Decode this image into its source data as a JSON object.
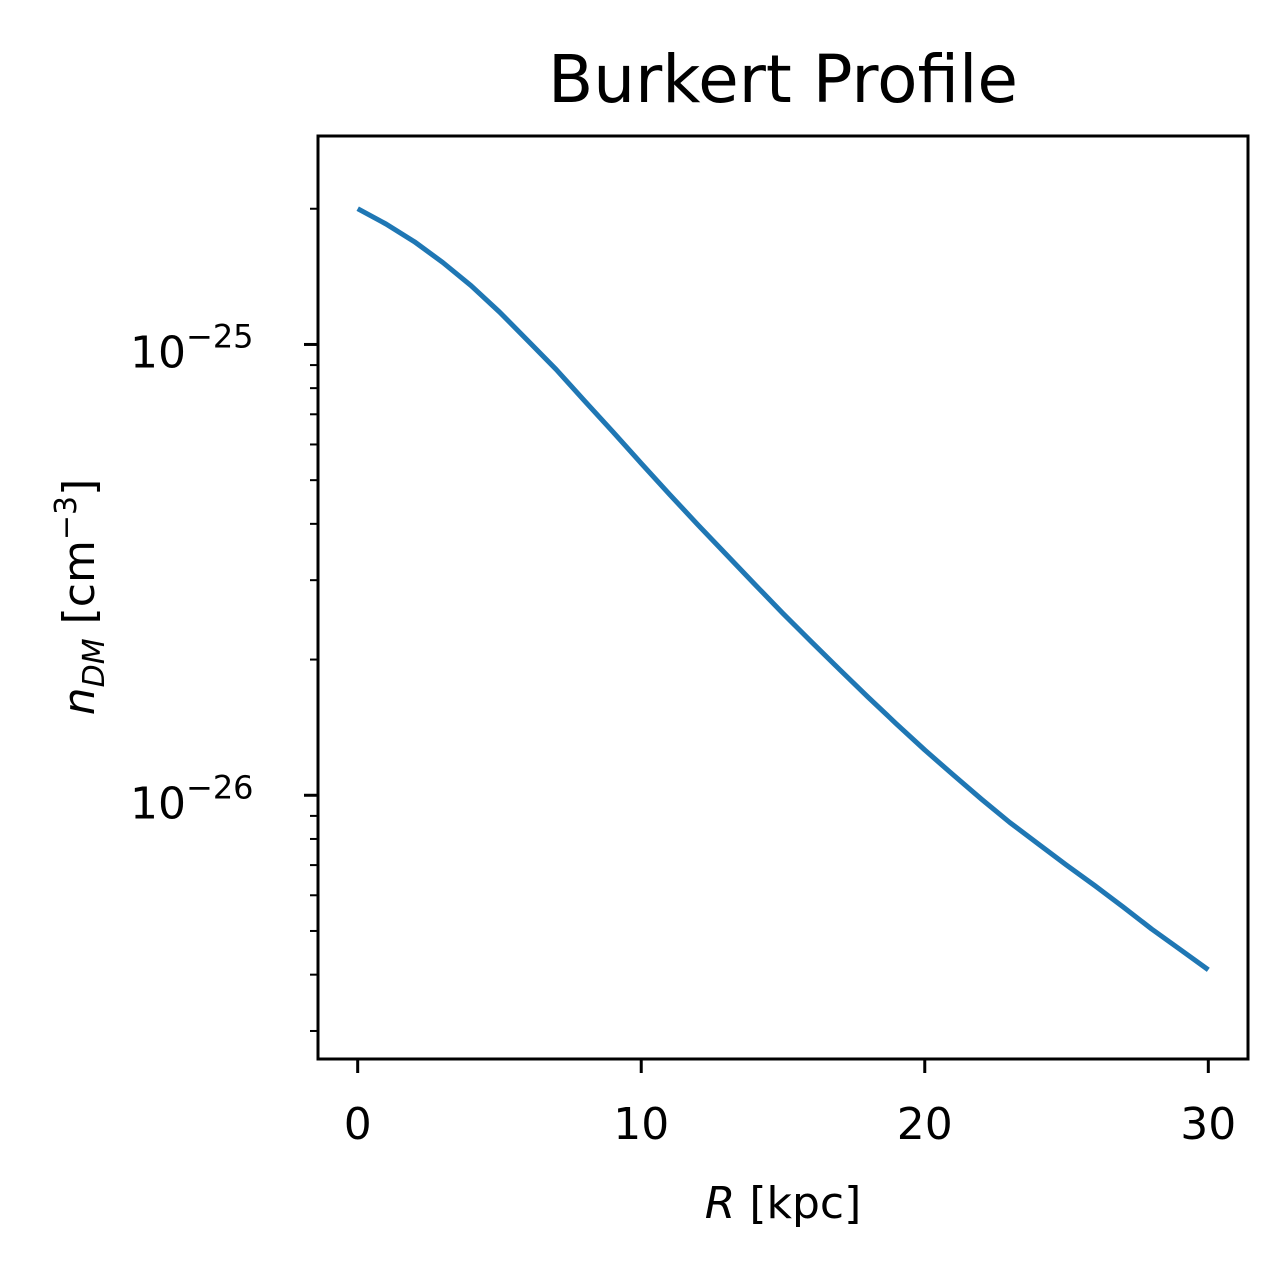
{
  "chart_data": {
    "type": "line",
    "title": "Burkert Profile",
    "xlabel": {
      "var": "R",
      "unit": " [kpc]"
    },
    "ylabel": {
      "var": "n",
      "sub": "DM",
      "unit": " [cm",
      "unit_sup": "−3",
      "unit_end": "]"
    },
    "x_scale": "linear",
    "y_scale": "log",
    "xlim": [
      -1.4,
      31.4
    ],
    "ylim": [
      2.6e-27,
      2.9e-25
    ],
    "x_ticks": [
      {
        "value": 0,
        "label": "0"
      },
      {
        "value": 10,
        "label": "10"
      },
      {
        "value": 20,
        "label": "20"
      },
      {
        "value": 30,
        "label": "30"
      }
    ],
    "y_ticks": [
      {
        "value": 1e-25,
        "base": "10",
        "exp": "−25"
      },
      {
        "value": 1e-26,
        "base": "10",
        "exp": "−26"
      }
    ],
    "grid": false,
    "line_color": "#1f77b4",
    "series": [
      {
        "x": [
          0,
          1,
          2,
          3,
          4,
          5,
          6,
          7,
          8,
          9,
          10,
          11,
          12,
          13,
          14,
          15,
          16,
          17,
          18,
          19,
          20,
          21,
          22,
          23,
          24,
          25,
          26,
          27,
          28,
          29,
          30
        ],
        "y": [
          2e-25,
          1.85e-25,
          1.69e-25,
          1.52e-25,
          1.35e-25,
          1.18e-25,
          1.02e-25,
          8.8e-26,
          7.5e-26,
          6.4e-26,
          5.45e-26,
          4.65e-26,
          3.98e-26,
          3.42e-26,
          2.94e-26,
          2.53e-26,
          2.19e-26,
          1.9e-26,
          1.65e-26,
          1.44e-26,
          1.26e-26,
          1.11e-26,
          9.8e-27,
          8.7e-27,
          7.8e-27,
          7e-27,
          6.3e-27,
          5.65e-27,
          5.05e-27,
          4.55e-27,
          4.1e-27
        ]
      }
    ]
  }
}
